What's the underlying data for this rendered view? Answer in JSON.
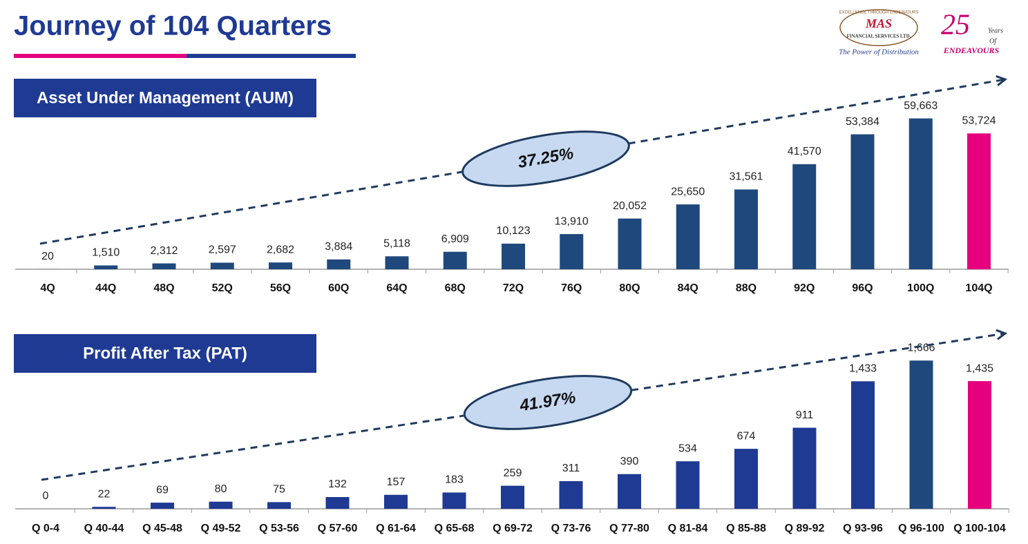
{
  "title": "Journey of 104 Quarters",
  "logos": {
    "mas": {
      "name": "MAS",
      "ring": "EXCELLENCE THROUGH ENDEAVOURS",
      "company": "FINANCIAL SERVICES LTD.",
      "tagline": "The Power of Distribution"
    },
    "anniversary": {
      "number": "25",
      "years": "Years",
      "of": "Of",
      "word": "ENDEAVOURS"
    }
  },
  "chart_data": [
    {
      "type": "bar",
      "title": "Asset Under Management (AUM)",
      "annotation": "37.25%",
      "categories": [
        "4Q",
        "44Q",
        "48Q",
        "52Q",
        "56Q",
        "60Q",
        "64Q",
        "68Q",
        "72Q",
        "76Q",
        "80Q",
        "84Q",
        "88Q",
        "92Q",
        "96Q",
        "100Q",
        "104Q"
      ],
      "values": [
        20,
        1510,
        2312,
        2597,
        2682,
        3884,
        5118,
        6909,
        10123,
        13910,
        20052,
        25650,
        31561,
        41570,
        53384,
        59663,
        53724
      ],
      "value_labels": [
        "20",
        "1,510",
        "2,312",
        "2,597",
        "2,682",
        "3,884",
        "5,118",
        "6,909",
        "10,123",
        "13,910",
        "20,052",
        "25,650",
        "31,561",
        "41,570",
        "53,384",
        "59,663",
        "53,724"
      ],
      "colors": [
        "#1f497d",
        "#1f497d",
        "#1f497d",
        "#1f497d",
        "#1f497d",
        "#1f497d",
        "#1f497d",
        "#1f497d",
        "#1f497d",
        "#1f497d",
        "#1f497d",
        "#1f497d",
        "#1f497d",
        "#1f497d",
        "#1f497d",
        "#1f497d",
        "#e6007e"
      ],
      "ylim": [
        0,
        65000
      ]
    },
    {
      "type": "bar",
      "title": "Profit After Tax (PAT)",
      "annotation": "41.97%",
      "categories": [
        "Q 0-4",
        "Q 40-44",
        "Q 45-48",
        "Q 49-52",
        "Q 53-56",
        "Q 57-60",
        "Q 61-64",
        "Q 65-68",
        "Q 69-72",
        "Q 73-76",
        "Q 77-80",
        "Q 81-84",
        "Q 85-88",
        "Q 89-92",
        "Q 93-96",
        "Q 96-100",
        "Q 100-104"
      ],
      "values": [
        0,
        22,
        69,
        80,
        75,
        132,
        157,
        183,
        259,
        311,
        390,
        534,
        674,
        911,
        1433,
        1666,
        1435
      ],
      "value_labels": [
        "0",
        "22",
        "69",
        "80",
        "75",
        "132",
        "157",
        "183",
        "259",
        "311",
        "390",
        "534",
        "674",
        "911",
        "1,433",
        "1,666",
        "1,435"
      ],
      "colors": [
        "#1f3a93",
        "#1f3a93",
        "#1f3a93",
        "#1f3a93",
        "#1f3a93",
        "#1f3a93",
        "#1f3a93",
        "#1f3a93",
        "#1f3a93",
        "#1f3a93",
        "#1f3a93",
        "#1f3a93",
        "#1f3a93",
        "#1f3a93",
        "#1f3a93",
        "#1f497d",
        "#e6007e"
      ],
      "ylim": [
        0,
        1800
      ]
    }
  ]
}
